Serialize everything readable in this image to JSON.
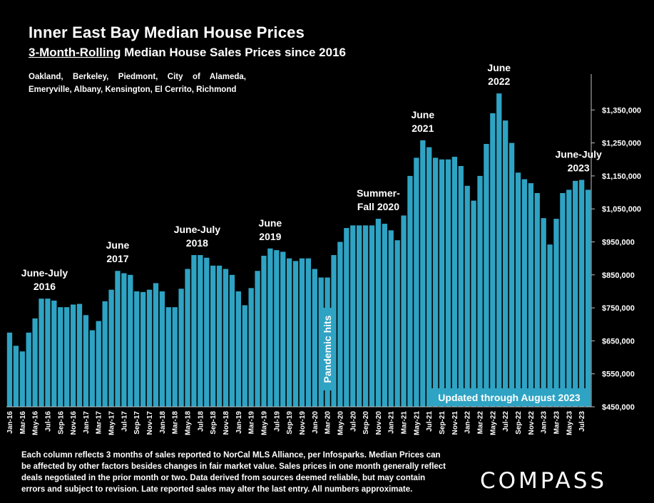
{
  "header": {
    "title": "Inner East Bay Median House Prices",
    "subtitle_underlined": "3-Month-Rolling",
    "subtitle_rest": " Median House Sales Prices since 2016",
    "areas": "Oakland, Berkeley, Piedmont, City of Alameda, Emeryville, Albany, Kensington, El Cerrito, Richmond"
  },
  "footnote": "Each column reflects 3 months of sales reported to NorCal MLS Alliance, per Infosparks. Median Prices can be affected by other factors besides changes in fair market value. Sales prices in one month generally reflect deals negotiated in the prior month or two. Data derived from sources deemed reliable, but may contain errors and subject to revision. Late reported sales may alter the last entry. All numbers approximate.",
  "logo": "COMPASS",
  "colors": {
    "background": "#000000",
    "bar": "#2fa3c3",
    "text": "#ffffff"
  },
  "chart_data": {
    "type": "bar",
    "title": "Inner East Bay Median House Prices",
    "ylim": [
      450000,
      1450000
    ],
    "yticks": [
      450000,
      550000,
      650000,
      750000,
      850000,
      950000,
      1050000,
      1150000,
      1250000,
      1350000
    ],
    "ytick_labels": [
      "$450,000",
      "$550,000",
      "$650,000",
      "$750,000",
      "$850,000",
      "$950,000",
      "$1,050,000",
      "$1,150,000",
      "$1,250,000",
      "$1,350,000"
    ],
    "grid": false,
    "x_tick_labels": [
      "Jan-16",
      "Mar-16",
      "May-16",
      "Jul-16",
      "Sep-16",
      "Nov-16",
      "Jan-17",
      "Mar-17",
      "May-17",
      "Jul-17",
      "Sep-17",
      "Nov-17",
      "Jan-18",
      "Mar-18",
      "May-18",
      "Jul-18",
      "Sep-18",
      "Nov-18",
      "Jan-19",
      "Mar-19",
      "May-19",
      "Jul-19",
      "Sep-19",
      "Nov-19",
      "Jan-20",
      "Mar-20",
      "May-20",
      "Jul-20",
      "Sep-20",
      "Nov-20",
      "Jan-21",
      "Mar-21",
      "May-21",
      "Jul-21",
      "Sep-21",
      "Nov-21",
      "Jan-22",
      "Mar-22",
      "May-22",
      "Jul-22",
      "Sep-22",
      "Nov-22",
      "Jan-23",
      "Mar-23",
      "May-23",
      "Jul-23"
    ],
    "categories": [
      "Jan-16",
      "Feb-16",
      "Mar-16",
      "Apr-16",
      "May-16",
      "Jun-16",
      "Jul-16",
      "Aug-16",
      "Sep-16",
      "Oct-16",
      "Nov-16",
      "Dec-16",
      "Jan-17",
      "Feb-17",
      "Mar-17",
      "Apr-17",
      "May-17",
      "Jun-17",
      "Jul-17",
      "Aug-17",
      "Sep-17",
      "Oct-17",
      "Nov-17",
      "Dec-17",
      "Jan-18",
      "Feb-18",
      "Mar-18",
      "Apr-18",
      "May-18",
      "Jun-18",
      "Jul-18",
      "Aug-18",
      "Sep-18",
      "Oct-18",
      "Nov-18",
      "Dec-18",
      "Jan-19",
      "Feb-19",
      "Mar-19",
      "Apr-19",
      "May-19",
      "Jun-19",
      "Jul-19",
      "Aug-19",
      "Sep-19",
      "Oct-19",
      "Nov-19",
      "Dec-19",
      "Jan-20",
      "Feb-20",
      "Mar-20",
      "Apr-20",
      "May-20",
      "Jun-20",
      "Jul-20",
      "Aug-20",
      "Sep-20",
      "Oct-20",
      "Nov-20",
      "Dec-20",
      "Jan-21",
      "Feb-21",
      "Mar-21",
      "Apr-21",
      "May-21",
      "Jun-21",
      "Jul-21",
      "Aug-21",
      "Sep-21",
      "Oct-21",
      "Nov-21",
      "Dec-21",
      "Jan-22",
      "Feb-22",
      "Mar-22",
      "Apr-22",
      "May-22",
      "Jun-22",
      "Jul-22",
      "Aug-22",
      "Sep-22",
      "Oct-22",
      "Nov-22",
      "Dec-22",
      "Jan-23",
      "Feb-23",
      "Mar-23",
      "Apr-23",
      "May-23",
      "Jun-23",
      "Jul-23",
      "Aug-23"
    ],
    "values": [
      675000,
      635000,
      618000,
      675000,
      718000,
      778000,
      778000,
      772000,
      752000,
      752000,
      760000,
      762000,
      728000,
      682000,
      710000,
      770000,
      805000,
      862000,
      855000,
      850000,
      800000,
      798000,
      805000,
      825000,
      800000,
      752000,
      752000,
      808000,
      868000,
      910000,
      910000,
      902000,
      878000,
      878000,
      868000,
      850000,
      800000,
      758000,
      810000,
      862000,
      908000,
      930000,
      925000,
      920000,
      900000,
      892000,
      900000,
      900000,
      868000,
      842000,
      842000,
      910000,
      950000,
      992000,
      1000000,
      1000000,
      1000000,
      1000000,
      1020000,
      1005000,
      985000,
      955000,
      1030000,
      1150000,
      1205000,
      1258000,
      1237000,
      1205000,
      1200000,
      1200000,
      1208000,
      1180000,
      1120000,
      1075000,
      1150000,
      1247000,
      1340000,
      1400000,
      1318000,
      1250000,
      1160000,
      1140000,
      1128000,
      1098000,
      1022000,
      942000,
      1020000,
      1098000,
      1108000,
      1135000,
      1138000,
      1108000
    ],
    "annotations": [
      {
        "lines": [
          "June-July",
          "2016"
        ],
        "index": 5.5
      },
      {
        "lines": [
          "June",
          "2017"
        ],
        "index": 17
      },
      {
        "lines": [
          "June-July",
          "2018"
        ],
        "index": 29.5
      },
      {
        "lines": [
          "June",
          "2019"
        ],
        "index": 41
      },
      {
        "lines": [
          "Summer-",
          "Fall 2020"
        ],
        "index": 58
      },
      {
        "lines": [
          "June",
          "2021"
        ],
        "index": 65
      },
      {
        "lines": [
          "June",
          "2022"
        ],
        "index": 77
      },
      {
        "lines": [
          "June-July",
          "2023"
        ],
        "index": 89.5
      }
    ],
    "pandemic_label": "Pandemic hits",
    "updated_label": "Updated through August 2023"
  }
}
